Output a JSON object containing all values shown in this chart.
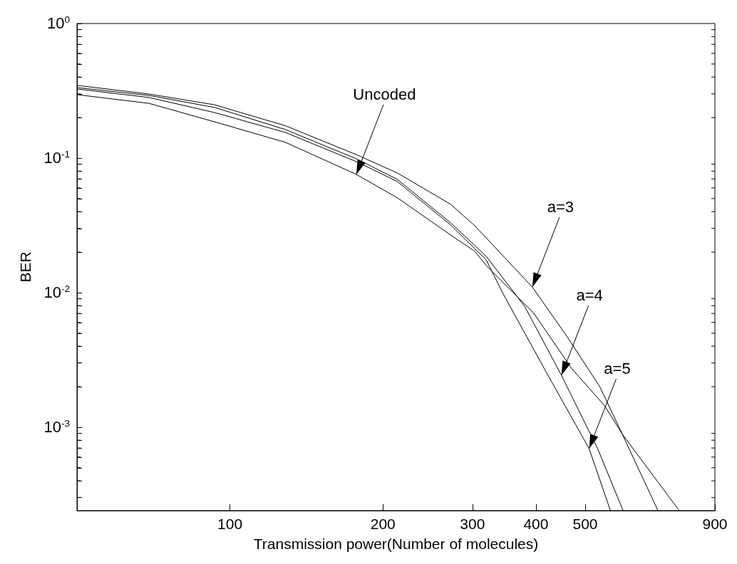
{
  "chart_data": {
    "type": "line",
    "xlabel": "Transmission power(Number of molecules)",
    "ylabel": "BER",
    "log": "xy",
    "grid": false,
    "marker": "none",
    "line_style": "solid",
    "xlim": [
      50,
      900
    ],
    "xticks": [
      100,
      200,
      300,
      400,
      500,
      900
    ],
    "ylim": [
      0.00024,
      1
    ],
    "yticks": [
      {
        "value": 1,
        "label": "10$^{0}$"
      },
      {
        "value": 0.1,
        "label": "10$^{-1}$"
      },
      {
        "value": 0.01,
        "label": "10$^{-2}$"
      },
      {
        "value": 0.001,
        "label": "10$^{-3}$"
      },
      {
        "value": 0.0003,
        "label": null
      },
      {
        "value": 0.0004,
        "label": null
      },
      {
        "value": 0.0005,
        "label": null
      },
      {
        "value": 0.0006,
        "label": null
      },
      {
        "value": 0.0007,
        "label": null
      },
      {
        "value": 0.0008,
        "label": null
      },
      {
        "value": 0.0009,
        "label": null
      },
      {
        "value": 0.002,
        "label": null
      },
      {
        "value": 0.003,
        "label": null
      },
      {
        "value": 0.004,
        "label": null
      },
      {
        "value": 0.005,
        "label": null
      },
      {
        "value": 0.006,
        "label": null
      },
      {
        "value": 0.007,
        "label": null
      },
      {
        "value": 0.008,
        "label": null
      },
      {
        "value": 0.009,
        "label": null
      },
      {
        "value": 0.02,
        "label": null
      },
      {
        "value": 0.03,
        "label": null
      },
      {
        "value": 0.04,
        "label": null
      },
      {
        "value": 0.05,
        "label": null
      },
      {
        "value": 0.06,
        "label": null
      },
      {
        "value": 0.07,
        "label": null
      },
      {
        "value": 0.08,
        "label": null
      },
      {
        "value": 0.09,
        "label": null
      },
      {
        "value": 0.2,
        "label": null
      },
      {
        "value": 0.3,
        "label": null
      },
      {
        "value": 0.4,
        "label": null
      },
      {
        "value": 0.5,
        "label": null
      },
      {
        "value": 0.6,
        "label": null
      },
      {
        "value": 0.7,
        "label": null
      },
      {
        "value": 0.8,
        "label": null
      },
      {
        "value": 0.9,
        "label": null
      }
    ],
    "series": [
      {
        "color": "#000000",
        "x": [
          50,
          69.3,
          93.2,
          128.5,
          177.3,
          213.6,
          271.9,
          303.2,
          393.6,
          460.8,
          534.2,
          591.9,
          695.3
        ],
        "values": [
          0.347,
          0.299,
          0.249,
          0.174,
          0.106,
          0.0774,
          0.0453,
          0.0314,
          0.011,
          0.0047,
          0.002,
          0.000885,
          0.00024
        ]
      },
      {
        "color": "#000000",
        "x": [
          50,
          69.3,
          93.2,
          128.5,
          177.3,
          213.6,
          271.9,
          319.4,
          379.9,
          449.0,
          529.0,
          593.8
        ],
        "values": [
          0.334,
          0.292,
          0.238,
          0.163,
          0.0988,
          0.0694,
          0.033,
          0.0186,
          0.00793,
          0.00243,
          0.000693,
          0.00024
        ]
      },
      {
        "color": "#000000",
        "x": [
          50,
          69.3,
          93.2,
          128.5,
          177.3,
          213.6,
          271.9,
          319.4,
          345.0,
          422.5,
          509.0,
          560.6
        ],
        "values": [
          0.326,
          0.282,
          0.218,
          0.155,
          0.0941,
          0.0669,
          0.0318,
          0.0175,
          0.00975,
          0.00243,
          0.000693,
          0.00024
        ]
      },
      {
        "color": "#000000",
        "x": [
          50,
          69.3,
          93.2,
          128.5,
          177.3,
          213.6,
          271.9,
          303.2,
          319.4,
          396.1,
          469.7,
          546.3,
          591.9,
          765.6
        ],
        "values": [
          0.296,
          0.255,
          0.186,
          0.131,
          0.0756,
          0.0506,
          0.0268,
          0.0203,
          0.0159,
          0.00703,
          0.00275,
          0.00144,
          0.000885,
          0.00024
        ]
      }
    ],
    "annotations": [
      {
        "text": "Uncoded",
        "x": 177.3,
        "y": 0.0756
      },
      {
        "text": "a=3",
        "x": 393.6,
        "y": 0.011
      },
      {
        "text": "a=4",
        "x": 449.0,
        "y": 0.00243
      },
      {
        "text": "a=5",
        "x": 509.0,
        "y": 0.000693
      }
    ]
  }
}
